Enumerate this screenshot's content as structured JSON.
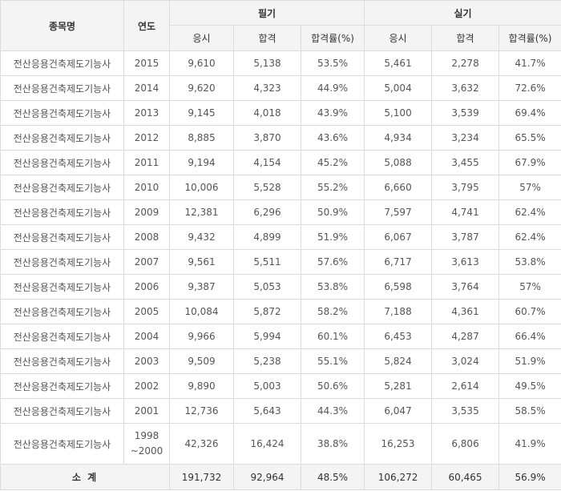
{
  "header": {
    "name": "종목명",
    "year": "연도",
    "written": "필기",
    "practical": "실기",
    "applicants": "응시",
    "passed": "합격",
    "rate": "합격률(%)"
  },
  "rows": [
    {
      "name": "전산응용건축제도기능사",
      "year": "2015",
      "year2": "",
      "w_app": "9,610",
      "w_pass": "5,138",
      "w_rate": "53.5%",
      "p_app": "5,461",
      "p_pass": "2,278",
      "p_rate": "41.7%"
    },
    {
      "name": "전산응용건축제도기능사",
      "year": "2014",
      "year2": "",
      "w_app": "9,620",
      "w_pass": "4,323",
      "w_rate": "44.9%",
      "p_app": "5,004",
      "p_pass": "3,632",
      "p_rate": "72.6%"
    },
    {
      "name": "전산응용건축제도기능사",
      "year": "2013",
      "year2": "",
      "w_app": "9,145",
      "w_pass": "4,018",
      "w_rate": "43.9%",
      "p_app": "5,100",
      "p_pass": "3,539",
      "p_rate": "69.4%"
    },
    {
      "name": "전산응용건축제도기능사",
      "year": "2012",
      "year2": "",
      "w_app": "8,885",
      "w_pass": "3,870",
      "w_rate": "43.6%",
      "p_app": "4,934",
      "p_pass": "3,234",
      "p_rate": "65.5%"
    },
    {
      "name": "전산응용건축제도기능사",
      "year": "2011",
      "year2": "",
      "w_app": "9,194",
      "w_pass": "4,154",
      "w_rate": "45.2%",
      "p_app": "5,088",
      "p_pass": "3,455",
      "p_rate": "67.9%"
    },
    {
      "name": "전산응용건축제도기능사",
      "year": "2010",
      "year2": "",
      "w_app": "10,006",
      "w_pass": "5,528",
      "w_rate": "55.2%",
      "p_app": "6,660",
      "p_pass": "3,795",
      "p_rate": "57%"
    },
    {
      "name": "전산응용건축제도기능사",
      "year": "2009",
      "year2": "",
      "w_app": "12,381",
      "w_pass": "6,296",
      "w_rate": "50.9%",
      "p_app": "7,597",
      "p_pass": "4,741",
      "p_rate": "62.4%"
    },
    {
      "name": "전산응용건축제도기능사",
      "year": "2008",
      "year2": "",
      "w_app": "9,432",
      "w_pass": "4,899",
      "w_rate": "51.9%",
      "p_app": "6,067",
      "p_pass": "3,787",
      "p_rate": "62.4%"
    },
    {
      "name": "전산응용건축제도기능사",
      "year": "2007",
      "year2": "",
      "w_app": "9,561",
      "w_pass": "5,511",
      "w_rate": "57.6%",
      "p_app": "6,717",
      "p_pass": "3,613",
      "p_rate": "53.8%"
    },
    {
      "name": "전산응용건축제도기능사",
      "year": "2006",
      "year2": "",
      "w_app": "9,387",
      "w_pass": "5,053",
      "w_rate": "53.8%",
      "p_app": "6,598",
      "p_pass": "3,764",
      "p_rate": "57%"
    },
    {
      "name": "전산응용건축제도기능사",
      "year": "2005",
      "year2": "",
      "w_app": "10,084",
      "w_pass": "5,872",
      "w_rate": "58.2%",
      "p_app": "7,188",
      "p_pass": "4,361",
      "p_rate": "60.7%"
    },
    {
      "name": "전산응용건축제도기능사",
      "year": "2004",
      "year2": "",
      "w_app": "9,966",
      "w_pass": "5,994",
      "w_rate": "60.1%",
      "p_app": "6,453",
      "p_pass": "4,287",
      "p_rate": "66.4%"
    },
    {
      "name": "전산응용건축제도기능사",
      "year": "2003",
      "year2": "",
      "w_app": "9,509",
      "w_pass": "5,238",
      "w_rate": "55.1%",
      "p_app": "5,824",
      "p_pass": "3,024",
      "p_rate": "51.9%"
    },
    {
      "name": "전산응용건축제도기능사",
      "year": "2002",
      "year2": "",
      "w_app": "9,890",
      "w_pass": "5,003",
      "w_rate": "50.6%",
      "p_app": "5,281",
      "p_pass": "2,614",
      "p_rate": "49.5%"
    },
    {
      "name": "전산응용건축제도기능사",
      "year": "2001",
      "year2": "",
      "w_app": "12,736",
      "w_pass": "5,643",
      "w_rate": "44.3%",
      "p_app": "6,047",
      "p_pass": "3,535",
      "p_rate": "58.5%"
    },
    {
      "name": "전산응용건축제도기능사",
      "year": "1998",
      "year2": "~2000",
      "w_app": "42,326",
      "w_pass": "16,424",
      "w_rate": "38.8%",
      "p_app": "16,253",
      "p_pass": "6,806",
      "p_rate": "41.9%"
    }
  ],
  "total": {
    "label": "소 계",
    "w_app": "191,732",
    "w_pass": "92,964",
    "w_rate": "48.5%",
    "p_app": "106,272",
    "p_pass": "60,465",
    "p_rate": "56.9%"
  }
}
